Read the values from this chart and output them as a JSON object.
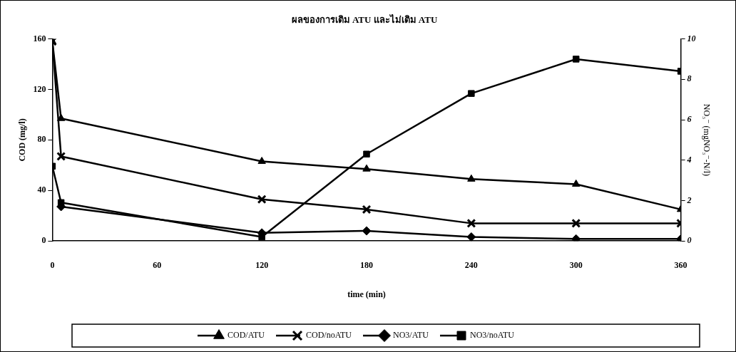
{
  "chart_data": {
    "type": "line",
    "title": "ผลของการเติม ATU และไม่เติม ATU",
    "xlabel": "time (min)",
    "ylabel": "COD (mg/l)",
    "y2label": "NO₃⁻ (mgNO₃⁻-N/l)",
    "xlim": [
      0,
      360
    ],
    "xticks": [
      0,
      60,
      120,
      180,
      240,
      300,
      360
    ],
    "ylim": [
      0,
      160
    ],
    "yticks": [
      0,
      40,
      80,
      120,
      160
    ],
    "y2lim": [
      0,
      10
    ],
    "y2ticks": [
      0,
      2,
      4,
      6,
      8,
      10
    ],
    "grid": false,
    "legend": "bottom",
    "line_style": "solid",
    "series": [
      {
        "name": "COD/ATU",
        "color": "#000000",
        "marker": "triangle",
        "x": [
          0,
          5,
          120,
          180,
          240,
          300,
          360
        ],
        "values": [
          158,
          97,
          63,
          57,
          49,
          45,
          25
        ]
      },
      {
        "name": "COD/noATU",
        "color": "#000000",
        "marker": "cross",
        "x": [
          0,
          5,
          120,
          180,
          240,
          300,
          360
        ],
        "values": [
          158,
          67,
          33,
          25,
          14,
          14,
          14
        ]
      },
      {
        "name": "NO3/ATU",
        "color": "#000000",
        "marker": "diamond",
        "axis": "y2",
        "x": [
          5,
          120,
          180,
          240,
          300,
          360
        ],
        "values": [
          1.7,
          0.4,
          0.5,
          0.2,
          0.1,
          0.1
        ]
      },
      {
        "name": "NO3/noATU",
        "color": "#000000",
        "marker": "square",
        "axis": "y2",
        "x": [
          0,
          5,
          120,
          180,
          240,
          300,
          360
        ],
        "values": [
          3.7,
          1.9,
          0.2,
          4.3,
          7.3,
          9.0,
          8.4
        ]
      }
    ]
  }
}
